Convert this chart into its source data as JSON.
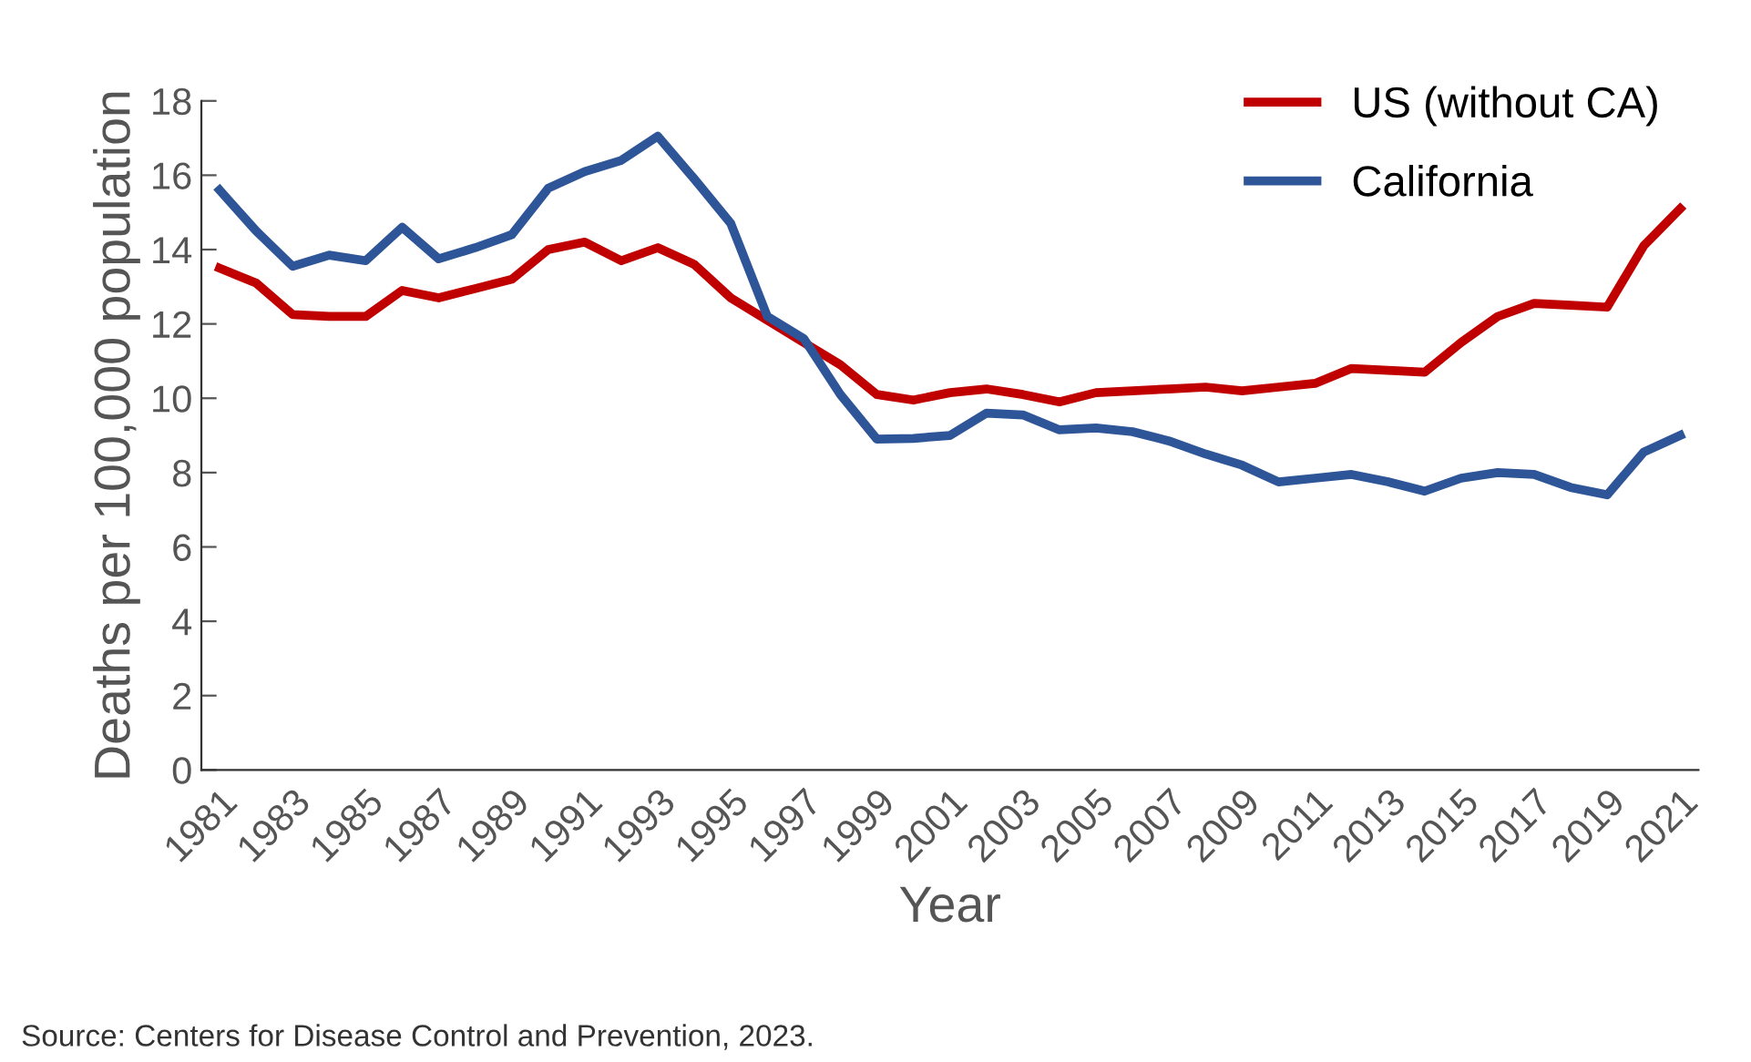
{
  "chart_data": {
    "type": "line",
    "xlabel": "Year",
    "ylabel": "Deaths per 100,000 population",
    "x": [
      1981,
      1982,
      1983,
      1984,
      1985,
      1986,
      1987,
      1988,
      1989,
      1990,
      1991,
      1992,
      1993,
      1994,
      1995,
      1996,
      1997,
      1998,
      1999,
      2000,
      2001,
      2002,
      2003,
      2004,
      2005,
      2006,
      2007,
      2008,
      2009,
      2010,
      2011,
      2012,
      2013,
      2014,
      2015,
      2016,
      2017,
      2018,
      2019,
      2020,
      2021
    ],
    "series": [
      {
        "name": "US (without CA)",
        "color": "#c00000",
        "values": [
          13.5,
          13.1,
          12.25,
          12.2,
          12.2,
          12.9,
          12.7,
          12.95,
          13.2,
          14.0,
          14.2,
          13.7,
          14.05,
          13.6,
          12.7,
          12.1,
          11.5,
          10.9,
          10.1,
          9.95,
          10.15,
          10.25,
          10.1,
          9.9,
          10.15,
          10.2,
          10.25,
          10.3,
          10.2,
          10.3,
          10.4,
          10.8,
          10.75,
          10.7,
          11.5,
          12.2,
          12.55,
          12.5,
          12.45,
          14.1,
          15.1
        ]
      },
      {
        "name": "California",
        "color": "#2e5597",
        "values": [
          15.6,
          14.5,
          13.55,
          13.85,
          13.7,
          14.6,
          13.75,
          14.05,
          14.4,
          15.65,
          16.1,
          16.4,
          17.05,
          15.9,
          14.7,
          12.2,
          11.6,
          10.1,
          8.9,
          8.92,
          9.0,
          9.6,
          9.55,
          9.15,
          9.2,
          9.1,
          8.85,
          8.5,
          8.2,
          7.75,
          7.85,
          7.95,
          7.75,
          7.5,
          7.85,
          8.0,
          7.95,
          7.6,
          7.4,
          8.55,
          9.0
        ]
      }
    ],
    "xlim": [
      1980.5,
      2021.5
    ],
    "xticks": [
      1981,
      1983,
      1985,
      1987,
      1989,
      1991,
      1993,
      1995,
      1997,
      1999,
      2001,
      2003,
      2005,
      2007,
      2009,
      2011,
      2013,
      2015,
      2017,
      2019,
      2021
    ],
    "ylim": [
      0,
      18
    ],
    "yticks": [
      0,
      2,
      4,
      6,
      8,
      10,
      12,
      14,
      16,
      18
    ],
    "grid": false,
    "legend": "top right",
    "marker": "none",
    "line_style": "solid",
    "annotations": [
      "Source: Centers for Disease Control and Prevention, 2023."
    ]
  }
}
